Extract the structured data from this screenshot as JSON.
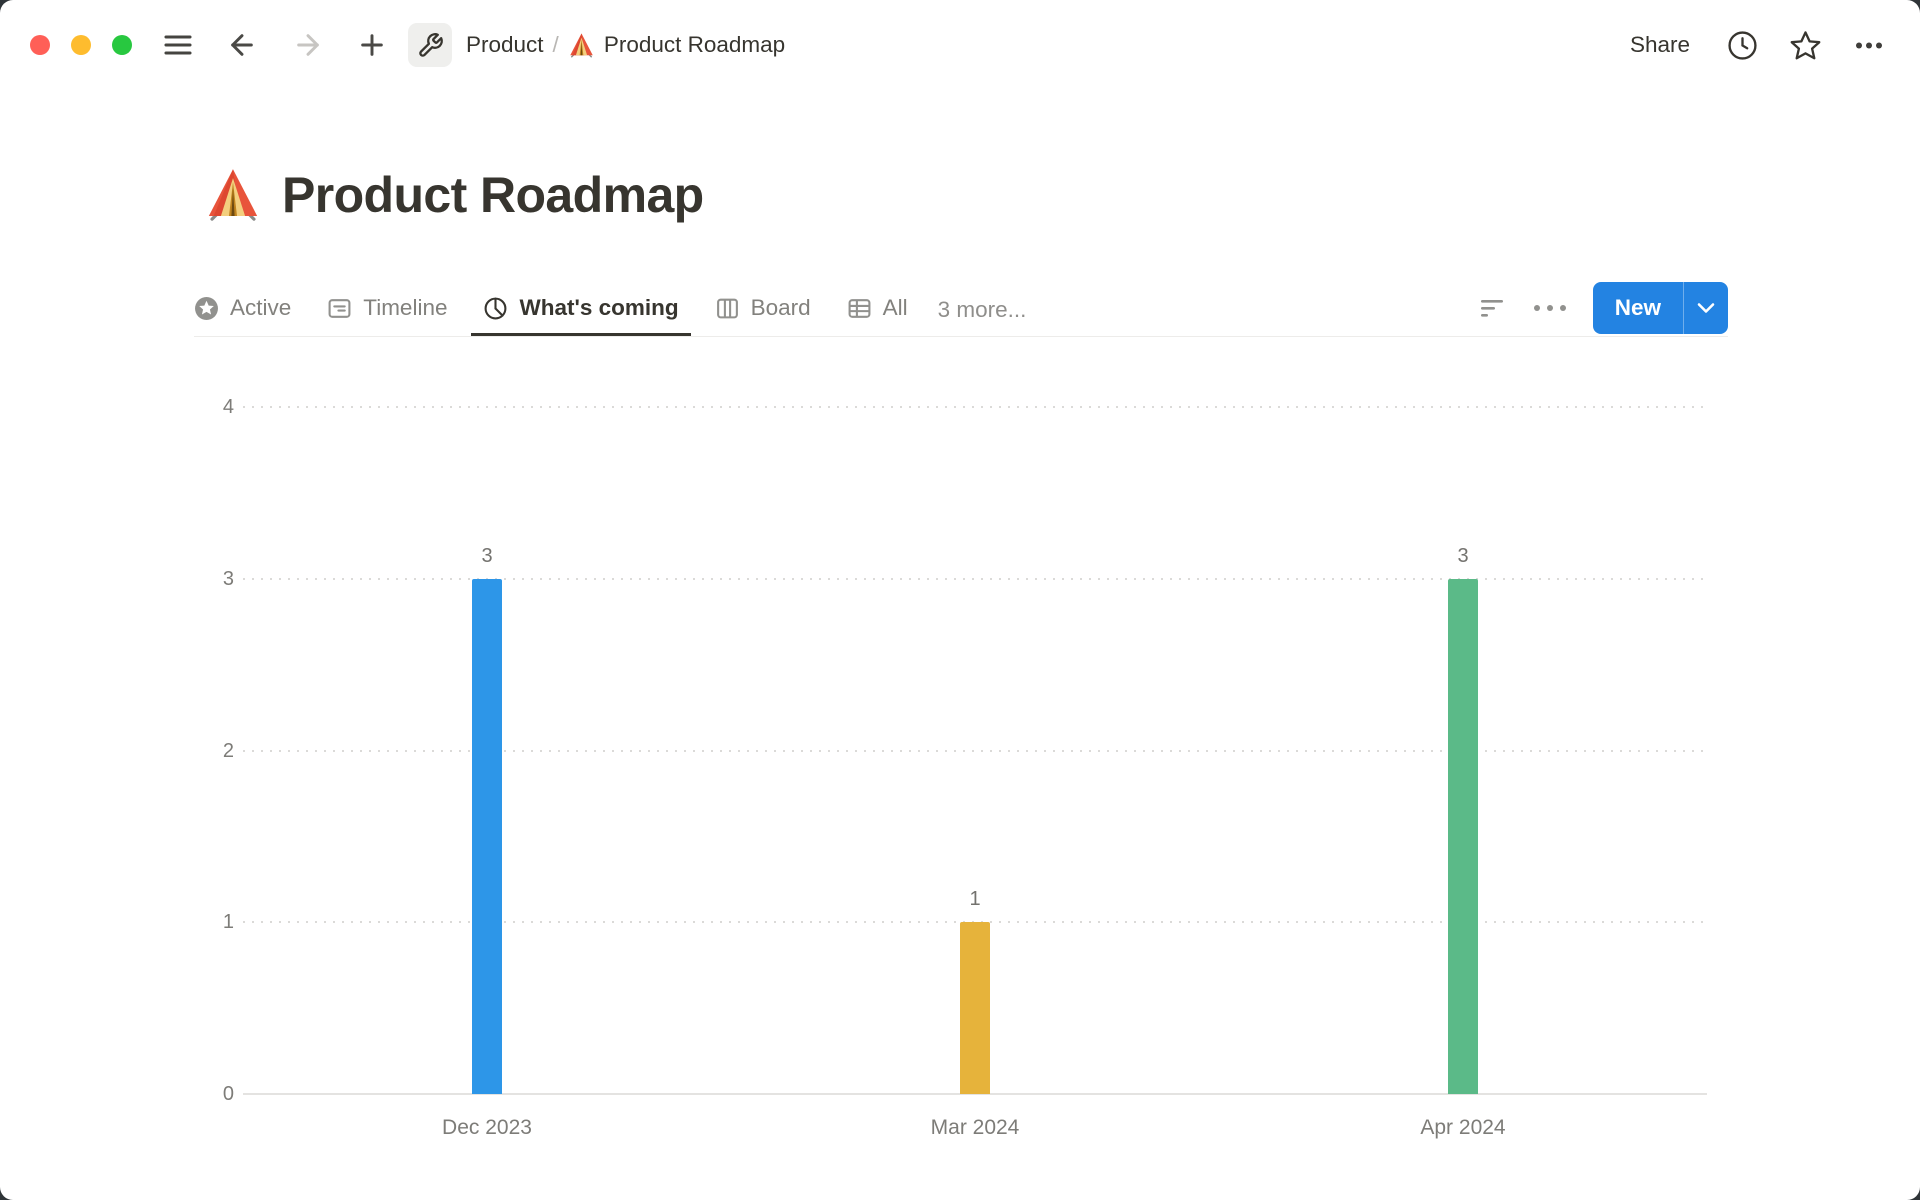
{
  "toolbar": {
    "traffic_lights": {
      "close": "#FF5F57",
      "minimize": "#FEBC2E",
      "zoom": "#28C840"
    },
    "breadcrumb": {
      "parent": "Product",
      "separator": "/",
      "page": "Product Roadmap"
    },
    "share_label": "Share"
  },
  "page": {
    "title": "Product Roadmap",
    "emoji": "tent"
  },
  "tabs": {
    "items": [
      {
        "label": "Active",
        "icon": "star-circle"
      },
      {
        "label": "Timeline",
        "icon": "timeline"
      },
      {
        "label": "What's coming",
        "icon": "pie-chart"
      },
      {
        "label": "Board",
        "icon": "board-columns"
      },
      {
        "label": "All",
        "icon": "table"
      }
    ],
    "active_label": "What's coming",
    "overflow_label": "3 more..."
  },
  "view_actions": {
    "new_button_label": "New",
    "accent_color": "#2383E2"
  },
  "chart_data": {
    "type": "bar",
    "title": "",
    "categories": [
      "Dec 2023",
      "Mar 2024",
      "Apr 2024"
    ],
    "values": [
      3,
      1,
      3
    ],
    "bar_colors": [
      "#2D96E8",
      "#E6B33B",
      "#5BBA88"
    ],
    "value_labels": [
      "3",
      "1",
      "3"
    ],
    "xlabel": "",
    "ylabel": "",
    "ylim": [
      0,
      4
    ],
    "yticks": [
      0,
      1,
      2,
      3,
      4
    ],
    "grid": "horizontal-dotted",
    "legend": "none"
  }
}
